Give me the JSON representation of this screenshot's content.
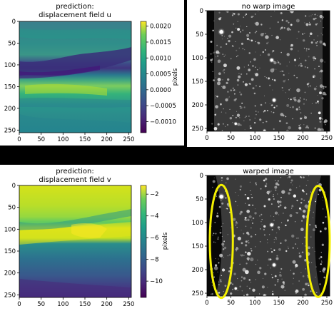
{
  "panels": [
    {
      "title_lines": [
        "prediction:",
        "displacement field u"
      ],
      "chart_data": {
        "type": "heatmap",
        "x_ticks": [
          0,
          50,
          100,
          150,
          200,
          250
        ],
        "y_ticks": [
          0,
          50,
          100,
          150,
          200,
          250
        ],
        "xlim": [
          0,
          256
        ],
        "ylim": [
          256,
          0
        ],
        "colormap": "viridis",
        "colorbar": {
          "label": "pixels",
          "ticks": [
            "0.0020",
            "0.0015",
            "0.0010",
            "0.0005",
            "0.0000",
            "−0.0005",
            "−0.0010"
          ],
          "tick_values": [
            0.002,
            0.0015,
            0.001,
            0.0005,
            0.0,
            -0.0005,
            -0.001
          ],
          "range": [
            -0.00135,
            0.00215
          ]
        }
      }
    },
    {
      "title_lines": [
        "no warp image"
      ],
      "chart_data": {
        "type": "image",
        "x_ticks": [
          0,
          50,
          100,
          150,
          200,
          250
        ],
        "y_ticks": [
          0,
          50,
          100,
          150,
          200,
          250
        ],
        "xlim": [
          0,
          256
        ],
        "ylim": [
          256,
          0
        ]
      }
    },
    {
      "title_lines": [
        "prediction:",
        "displacement field v"
      ],
      "chart_data": {
        "type": "heatmap",
        "x_ticks": [
          0,
          50,
          100,
          150,
          200,
          250
        ],
        "y_ticks": [
          0,
          50,
          100,
          150,
          200,
          250
        ],
        "xlim": [
          0,
          256
        ],
        "ylim": [
          256,
          0
        ],
        "colormap": "viridis",
        "colorbar": {
          "label": "pixels",
          "ticks": [
            "−2",
            "−4",
            "−6",
            "−8",
            "−10"
          ],
          "tick_values": [
            -2,
            -4,
            -6,
            -8,
            -10
          ],
          "range": [
            -11.5,
            -1.2
          ]
        }
      }
    },
    {
      "title_lines": [
        "warped image"
      ],
      "chart_data": {
        "type": "image",
        "x_ticks": [
          0,
          50,
          100,
          150,
          200,
          250
        ],
        "y_ticks": [
          0,
          50,
          100,
          150,
          200,
          250
        ],
        "xlim": [
          0,
          256
        ],
        "ylim": [
          256,
          0
        ],
        "annotations": [
          {
            "shape": "ellipse",
            "color": "#f4f000",
            "cx": 30,
            "cy": 140,
            "rx": 24,
            "ry": 120
          },
          {
            "shape": "ellipse",
            "color": "#f4f000",
            "cx": 232,
            "cy": 140,
            "rx": 24,
            "ry": 118
          }
        ]
      }
    }
  ]
}
